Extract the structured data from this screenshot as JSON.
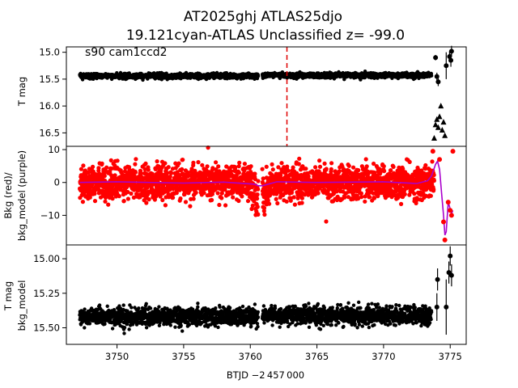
{
  "chart_data": {
    "type": "scatter",
    "title_line1": "AT2025ghj  ATLAS25djo",
    "title_line2": "19.121cyan-ATLAS Unclassified z= -99.0",
    "xlabel": "BTJD −2 457 000",
    "xlim": [
      3746.2,
      3776.2
    ],
    "x_ticks": [
      3750,
      3755,
      3760,
      3765,
      3770,
      3775
    ],
    "gap": [
      3760.6,
      3760.9
    ],
    "panels": [
      {
        "name": "tmag",
        "ylabel": "T mag",
        "ylim": [
          16.75,
          14.9
        ],
        "y_inverted": true,
        "y_ticks": [
          15.0,
          15.5,
          16.0,
          16.5
        ],
        "y_tick_labels": [
          "15.0",
          "15.5",
          "16.0",
          "16.5"
        ],
        "annotation": "s90 cam1ccd2",
        "vline_x": 3762.75,
        "vline_color": "#e00000",
        "marker_color": "#000000",
        "dense_segments": [
          {
            "x_start": 3747.2,
            "x_end": 3760.6,
            "center": 15.44,
            "spread": 0.05
          },
          {
            "x_start": 3760.9,
            "x_end": 3773.6,
            "center": 15.43,
            "spread": 0.05
          }
        ],
        "late_points": [
          {
            "x": 3773.9,
            "y": 15.1,
            "err": 0.05
          },
          {
            "x": 3774.0,
            "y": 15.45,
            "err": 0.07
          },
          {
            "x": 3774.1,
            "y": 15.55,
            "err": 0.08
          },
          {
            "x": 3774.7,
            "y": 15.25,
            "err": 0.25
          },
          {
            "x": 3774.95,
            "y": 15.08,
            "err": 0.1
          },
          {
            "x": 3775.05,
            "y": 15.15,
            "err": 0.12
          },
          {
            "x": 3775.1,
            "y": 14.98,
            "err": 0.1
          }
        ],
        "upper_limits": [
          {
            "x": 3773.8,
            "y": 16.6
          },
          {
            "x": 3773.9,
            "y": 16.35
          },
          {
            "x": 3774.0,
            "y": 16.25
          },
          {
            "x": 3774.1,
            "y": 16.4
          },
          {
            "x": 3774.2,
            "y": 16.2
          },
          {
            "x": 3774.3,
            "y": 16.0
          },
          {
            "x": 3774.4,
            "y": 16.45
          },
          {
            "x": 3774.5,
            "y": 16.3
          },
          {
            "x": 3774.6,
            "y": 16.55
          }
        ]
      },
      {
        "name": "background",
        "ylabel_line1": "Bkg (red)/",
        "ylabel_line2": "bkg_model (purple)",
        "ylim": [
          -19,
          11
        ],
        "y_ticks": [
          10,
          0,
          -10
        ],
        "y_tick_labels": [
          "10",
          "0",
          "−10"
        ],
        "data_color": "#ff0000",
        "model_color": "#aa00cc",
        "dense_segments": [
          {
            "x_start": 3747.2,
            "x_end": 3760.6,
            "center": 0.0,
            "spread": 4.5
          },
          {
            "x_start": 3760.9,
            "x_end": 3773.8,
            "center": 0.0,
            "spread": 4.5
          }
        ],
        "model_curve": [
          [
            3747.2,
            0.0
          ],
          [
            3750,
            0.2
          ],
          [
            3755,
            -0.2
          ],
          [
            3758,
            0.1
          ],
          [
            3760.3,
            -0.5
          ],
          [
            3760.6,
            -1.0
          ],
          [
            3760.9,
            -1.0
          ],
          [
            3762,
            0.2
          ],
          [
            3765,
            0.0
          ],
          [
            3770,
            0.2
          ],
          [
            3772.5,
            -0.3
          ],
          [
            3773.3,
            0.5
          ],
          [
            3773.6,
            2.0
          ],
          [
            3773.9,
            5.5
          ],
          [
            3774.05,
            6.5
          ],
          [
            3774.2,
            4.0
          ],
          [
            3774.35,
            -3.0
          ],
          [
            3774.5,
            -10.0
          ],
          [
            3774.6,
            -16.0
          ],
          [
            3774.7,
            -15.0
          ],
          [
            3774.85,
            -6.0
          ],
          [
            3775.0,
            -8.0
          ],
          [
            3775.1,
            -9.5
          ],
          [
            3775.2,
            -8.5
          ]
        ],
        "late_points": [
          {
            "x": 3773.7,
            "y": 9.5
          },
          {
            "x": 3774.2,
            "y": 7.0
          },
          {
            "x": 3774.5,
            "y": -12.0
          },
          {
            "x": 3774.6,
            "y": -17.5
          },
          {
            "x": 3774.85,
            "y": -6.0
          },
          {
            "x": 3775.0,
            "y": -8.5
          },
          {
            "x": 3775.1,
            "y": -10.0
          },
          {
            "x": 3775.2,
            "y": 9.5
          }
        ]
      },
      {
        "name": "tmag_bkg_model",
        "ylabel_line1": "T mag",
        "ylabel_line2": "bkg_model",
        "ylim": [
          15.62,
          14.9
        ],
        "y_inverted": true,
        "y_ticks": [
          15.0,
          15.25,
          15.5
        ],
        "y_tick_labels": [
          "15.00",
          "15.25",
          "15.50"
        ],
        "marker_color": "#000000",
        "dense_segments": [
          {
            "x_start": 3747.2,
            "x_end": 3760.6,
            "center": 15.42,
            "spread": 0.07
          },
          {
            "x_start": 3760.9,
            "x_end": 3773.6,
            "center": 15.41,
            "spread": 0.07
          }
        ],
        "late_points": [
          {
            "x": 3774.0,
            "y": 15.35,
            "err": 0.1
          },
          {
            "x": 3774.05,
            "y": 15.15,
            "err": 0.08
          },
          {
            "x": 3774.7,
            "y": 15.35,
            "err": 0.2
          },
          {
            "x": 3774.9,
            "y": 15.1,
            "err": 0.08
          },
          {
            "x": 3775.0,
            "y": 14.98,
            "err": 0.07
          },
          {
            "x": 3775.1,
            "y": 15.12,
            "err": 0.08
          }
        ]
      }
    ]
  }
}
